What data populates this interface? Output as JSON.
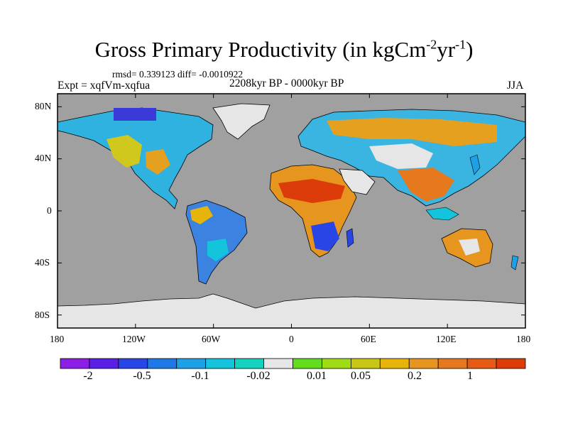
{
  "title": {
    "main": "Gross Primary Productivity (in kgCm",
    "exp1": "-2",
    "mid": "yr",
    "exp2": "-1",
    "end": ")"
  },
  "stats": "rmsd= 0.339123 diff= -0.0010922",
  "experiment": "Expt = xqfVm-xqfua",
  "period": "2208kyr BP - 0000kyr BP",
  "season": "JJA",
  "map": {
    "lat_labels": [
      "80N",
      "40N",
      "0",
      "40S",
      "80S"
    ],
    "lon_labels": [
      "180",
      "120W",
      "60W",
      "0",
      "60E",
      "120E",
      "180"
    ],
    "ocean_color": "#a0a0a0",
    "land_missing_color": "#e6e6e6"
  },
  "colorbar": {
    "colors": [
      "#8c1ee6",
      "#5a1ee6",
      "#2846e6",
      "#1e78e6",
      "#1ea0e6",
      "#14c3dc",
      "#14d2be",
      "#e6e6e6",
      "#64dc1e",
      "#a0dc14",
      "#c8c814",
      "#e6b40a",
      "#e6961e",
      "#e6781e",
      "#e65a14",
      "#dc3c0a"
    ],
    "labels": [
      "-2",
      "-0.5",
      "-0.1",
      "-0.02",
      "0.01",
      "0.05",
      "0.2",
      "1"
    ]
  }
}
